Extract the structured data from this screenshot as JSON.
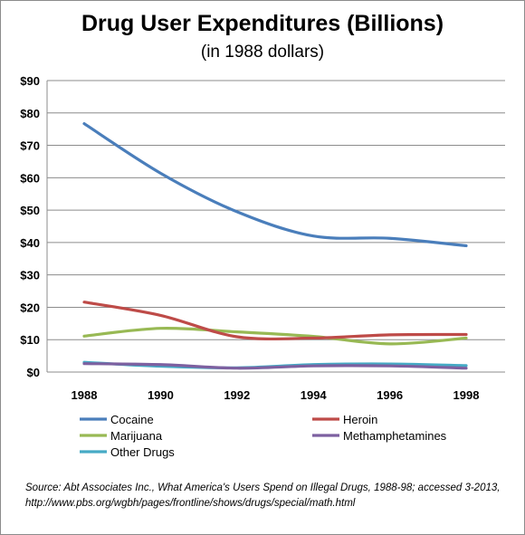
{
  "chart_data": {
    "type": "line",
    "title": "Drug User Expenditures (Billions)",
    "subtitle": "(in 1988 dollars)",
    "x": [
      1988,
      1990,
      1992,
      1994,
      1996,
      1998
    ],
    "ylim": [
      0,
      90
    ],
    "yticks": [
      "$0",
      "$10",
      "$20",
      "$30",
      "$40",
      "$50",
      "$60",
      "$70",
      "$80",
      "$90"
    ],
    "grid": true,
    "legend_position": "bottom",
    "series": [
      {
        "name": "Cocaine",
        "color": "#4a7ebb",
        "values": [
          76.7,
          61.4,
          49.5,
          42.0,
          41.3,
          39.0
        ]
      },
      {
        "name": "Heroin",
        "color": "#be4b48",
        "values": [
          21.6,
          17.5,
          10.9,
          10.5,
          11.5,
          11.6
        ]
      },
      {
        "name": "Marijuana",
        "color": "#98b954",
        "values": [
          11.1,
          13.5,
          12.4,
          11.0,
          8.7,
          10.5
        ]
      },
      {
        "name": "Methamphetamines",
        "color": "#7d60a0",
        "values": [
          2.6,
          2.3,
          1.2,
          1.9,
          1.9,
          1.2
        ]
      },
      {
        "name": "Other Drugs",
        "color": "#46aac5",
        "values": [
          3.0,
          1.8,
          1.3,
          2.3,
          2.5,
          2.0
        ]
      }
    ]
  },
  "source": {
    "prefix": "Source:  Abt Associates Inc., ",
    "report": "What America's Users Spend on Illegal Drugs, 1988-98",
    "suffix": "; accessed 3-2013, http://www.pbs.org/wgbh/pages/frontline/shows/drugs/special/math.html"
  }
}
